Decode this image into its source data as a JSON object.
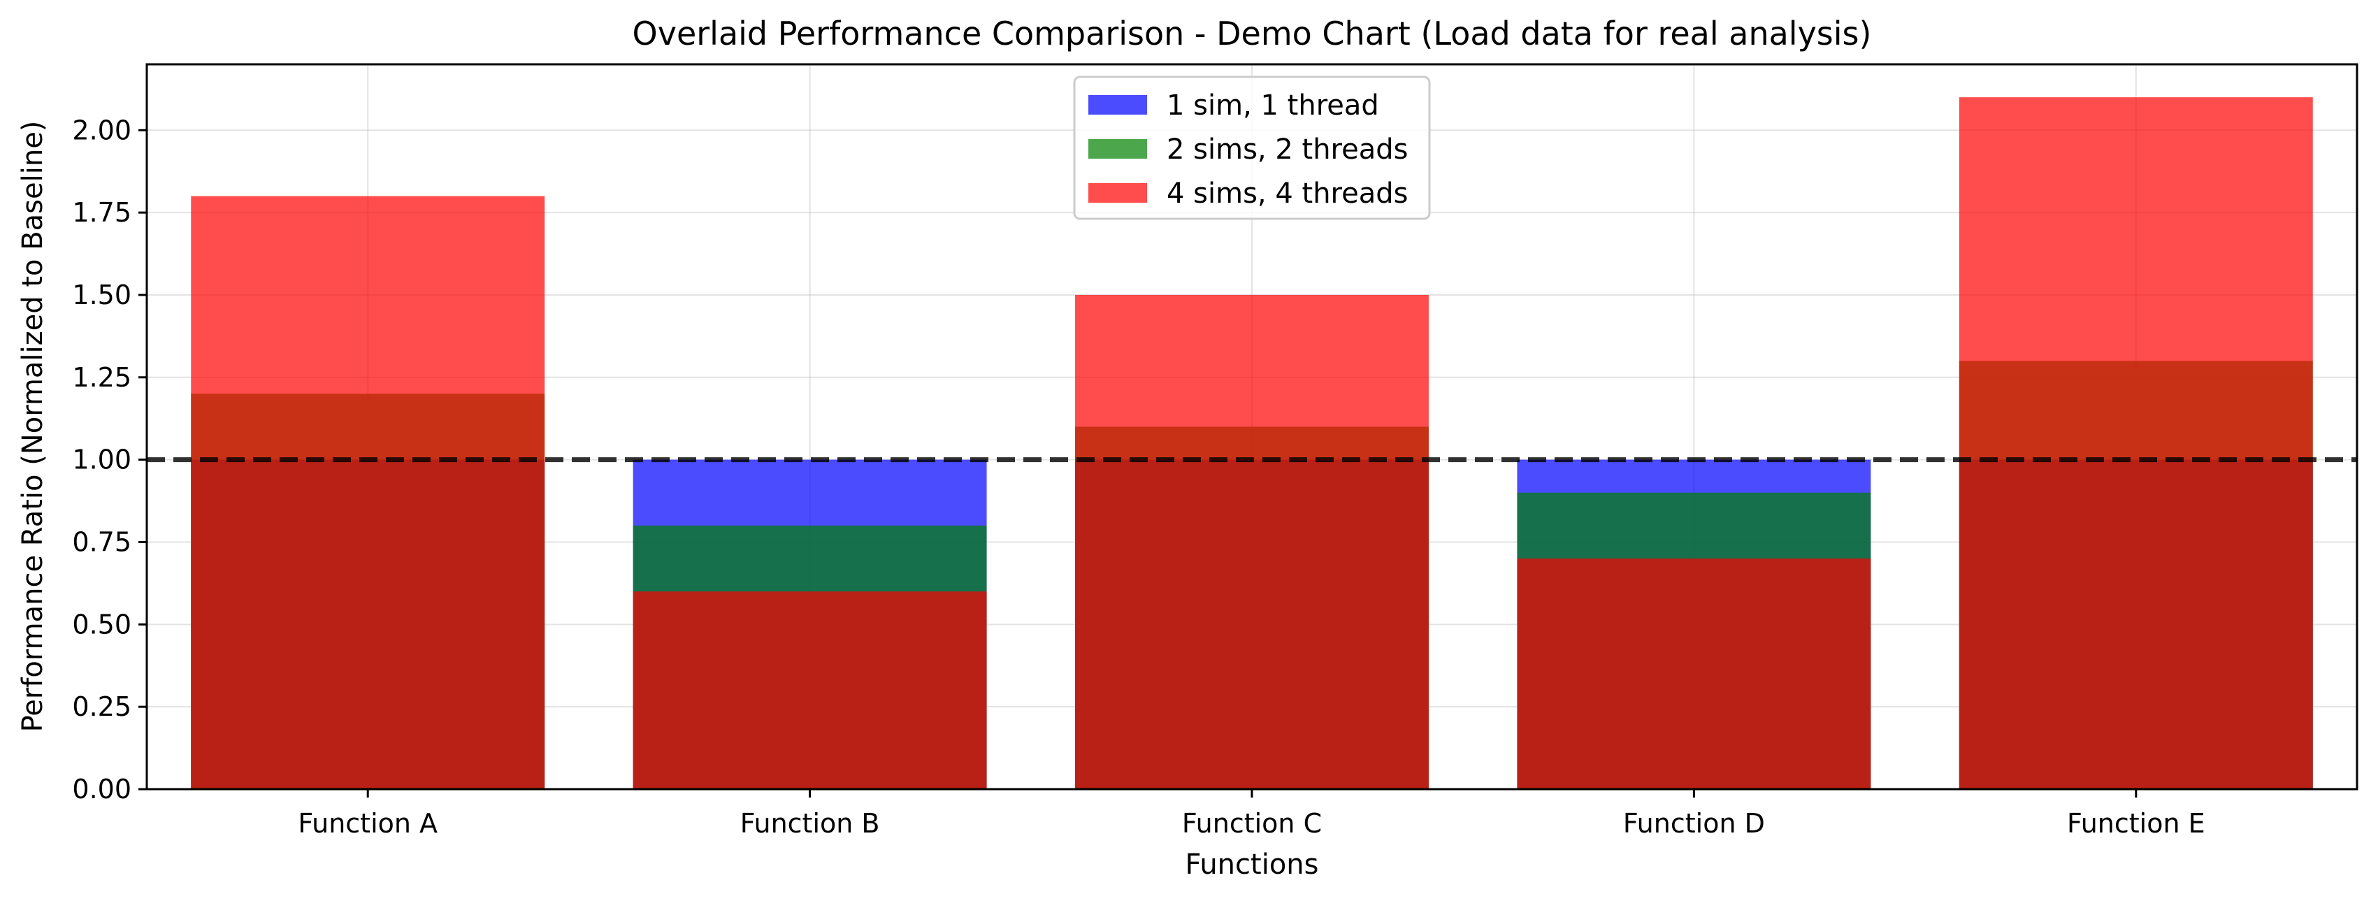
{
  "chart_data": {
    "type": "bar",
    "title": "Overlaid Performance Comparison - Demo Chart (Load data for real analysis)",
    "xlabel": "Functions",
    "ylabel": "Performance Ratio (Normalized to Baseline)",
    "categories": [
      "Function A",
      "Function B",
      "Function C",
      "Function D",
      "Function E"
    ],
    "series": [
      {
        "name": "1 sim, 1 thread",
        "color": "#0000ff",
        "values": [
          1.0,
          1.0,
          1.0,
          1.0,
          1.0
        ]
      },
      {
        "name": "2 sims, 2 threads",
        "color": "#008000",
        "values": [
          1.2,
          0.8,
          1.1,
          0.9,
          1.3
        ]
      },
      {
        "name": "4 sims, 4 threads",
        "color": "#ff0000",
        "values": [
          1.8,
          0.6,
          1.5,
          0.7,
          2.1
        ]
      }
    ],
    "bar_opacity": 0.7,
    "overlaid": true,
    "ylim": [
      0,
      2.2
    ],
    "yticks": [
      0.0,
      0.25,
      0.5,
      0.75,
      1.0,
      1.25,
      1.5,
      1.75,
      2.0
    ],
    "ytick_labels": [
      "0.00",
      "0.25",
      "0.50",
      "0.75",
      "1.00",
      "1.25",
      "1.50",
      "1.75",
      "2.00"
    ],
    "reference_line": {
      "y": 1.0,
      "style": "dashed",
      "color": "#000000"
    },
    "grid": true,
    "legend_position": "top-center"
  }
}
